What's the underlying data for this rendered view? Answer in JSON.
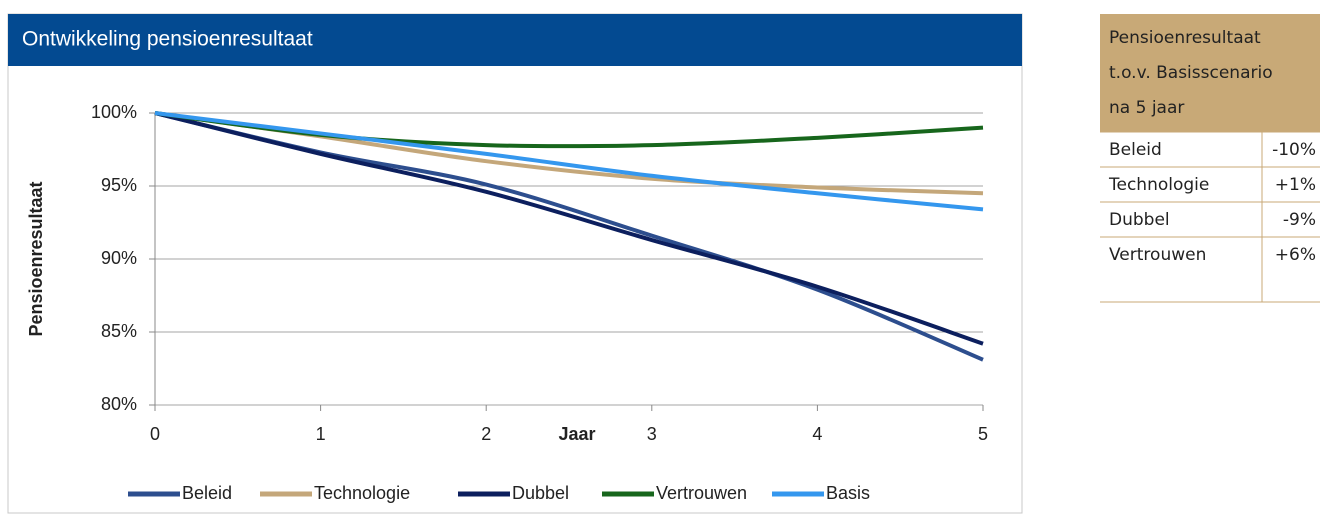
{
  "chart_data": {
    "type": "line",
    "title": "Ontwikkeling pensioenresultaat",
    "x_label": "Jaar",
    "y_label": "Pensioenresultaat",
    "x": [
      0,
      1,
      2,
      3,
      4,
      5
    ],
    "xlim": [
      0,
      5
    ],
    "xticks": [
      0,
      1,
      2,
      3,
      4,
      5
    ],
    "ylim": [
      80,
      100
    ],
    "yticks": [
      {
        "value": 80,
        "label": "80%"
      },
      {
        "value": 85,
        "label": "85%"
      },
      {
        "value": 90,
        "label": "90%"
      },
      {
        "value": 95,
        "label": "95%"
      },
      {
        "value": 100,
        "label": "100%"
      }
    ],
    "grid": true,
    "legend": "bottom",
    "series": [
      {
        "name": "Beleid",
        "color": "#2d4e8e",
        "values": [
          100,
          97.3,
          95.1,
          91.6,
          87.9,
          83.1
        ]
      },
      {
        "name": "Technologie",
        "color": "#c4a77a",
        "values": [
          100,
          98.4,
          96.7,
          95.5,
          94.9,
          94.5
        ]
      },
      {
        "name": "Dubbel",
        "color": "#0c1f5e",
        "values": [
          100,
          97.2,
          94.6,
          91.3,
          88.1,
          84.2
        ]
      },
      {
        "name": "Vertrouwen",
        "color": "#17661c",
        "values": [
          100,
          98.5,
          97.8,
          97.8,
          98.3,
          99.0
        ]
      },
      {
        "name": "Basis",
        "color": "#3497ee",
        "values": [
          100,
          98.6,
          97.2,
          95.7,
          94.5,
          93.4
        ]
      }
    ]
  },
  "table": {
    "header": [
      "Pensioenresultaat",
      "t.o.v. Basisscenario",
      "na 5 jaar"
    ],
    "rows": [
      [
        "Beleid",
        "-10%"
      ],
      [
        "Technologie",
        "+1%"
      ],
      [
        "Dubbel",
        "-9%"
      ],
      [
        "Vertrouwen",
        "+6%"
      ]
    ]
  }
}
